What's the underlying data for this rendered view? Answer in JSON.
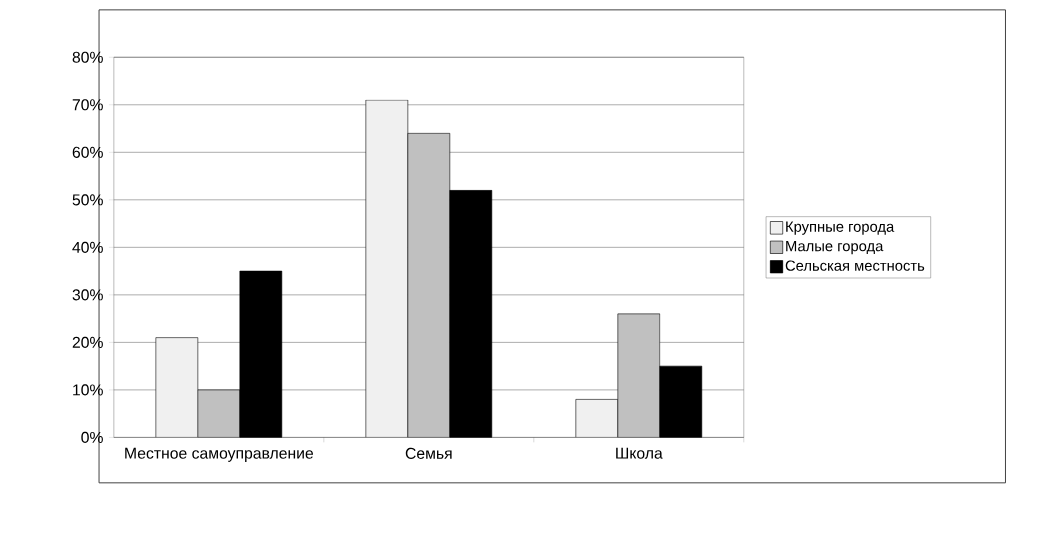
{
  "chart_data": {
    "type": "bar",
    "categories": [
      "Местное самоуправление",
      "Семья",
      "Школа"
    ],
    "series": [
      {
        "name": "Крупные города",
        "color": "#f0f0f0",
        "values": [
          21,
          71,
          8
        ]
      },
      {
        "name": "Малые города",
        "color": "#c0c0c0",
        "values": [
          10,
          64,
          26
        ]
      },
      {
        "name": "Сельская местность",
        "color": "#000000",
        "values": [
          35,
          52,
          15
        ]
      }
    ],
    "ylim": [
      0,
      80
    ],
    "yticks": [
      {
        "value": 0,
        "label": "0%"
      },
      {
        "value": 10,
        "label": "10%"
      },
      {
        "value": 20,
        "label": "20%"
      },
      {
        "value": 30,
        "label": "30%"
      },
      {
        "value": 40,
        "label": "40%"
      },
      {
        "value": 50,
        "label": "50%"
      },
      {
        "value": 60,
        "label": "60%"
      },
      {
        "value": 70,
        "label": "70%"
      },
      {
        "value": 80,
        "label": "80%"
      }
    ],
    "grid": "y",
    "legend": "right"
  }
}
